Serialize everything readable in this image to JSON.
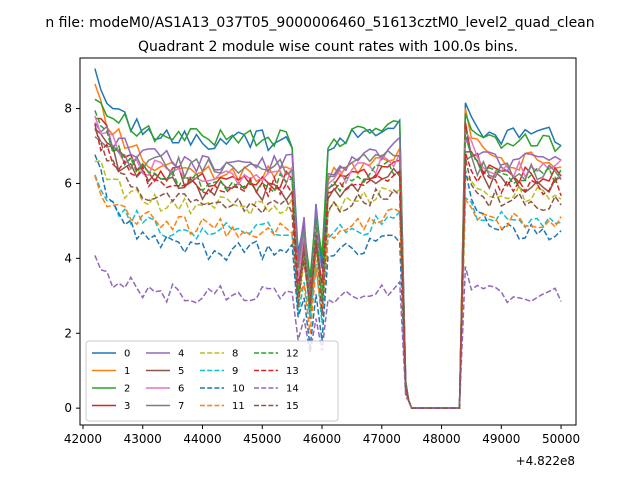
{
  "suptitle": "n file: modeM0/AS1A13_037T05_9000006460_51613cztM0_level2_quad_clean",
  "chart_data": {
    "type": "line",
    "title": "Quadrant 2 module wise count rates with 100.0s bins.",
    "xlabel": "",
    "ylabel": "",
    "x_offset_label": "+4.822e8",
    "xlim": [
      41950,
      50250
    ],
    "ylim": [
      -0.45,
      9.35
    ],
    "xticks": [
      42000,
      43000,
      44000,
      45000,
      46000,
      47000,
      48000,
      49000,
      50000
    ],
    "xtick_labels": [
      "42000",
      "43000",
      "44000",
      "45000",
      "46000",
      "47000",
      "48000",
      "49000",
      "50000"
    ],
    "yticks": [
      0,
      2,
      4,
      6,
      8
    ],
    "ytick_labels": [
      "0",
      "2",
      "4",
      "6",
      "8"
    ],
    "grid": false,
    "legend_placement": "lower-left",
    "legend_columns": 4,
    "segments": [
      {
        "start": 42200,
        "end": 45500,
        "gap_start": 45500
      },
      {
        "gap_end": 46100,
        "start": 46100,
        "end": 47300
      },
      {
        "drop_start": 47300,
        "zero_start": 47500,
        "zero_end": 48300
      },
      {
        "start": 48400,
        "end": 50000
      }
    ],
    "series": [
      {
        "name": "0",
        "color": "#1f77b4",
        "dash": "solid",
        "level": 7.15,
        "start": 8.85,
        "post": 7.25
      },
      {
        "name": "1",
        "color": "#ff7f0e",
        "dash": "solid",
        "level": 6.3,
        "start": 8.4,
        "post": 6.6
      },
      {
        "name": "2",
        "color": "#2ca02c",
        "dash": "solid",
        "level": 7.2,
        "start": 8.5,
        "post": 7.1
      },
      {
        "name": "3",
        "color": "#d62728",
        "dash": "solid",
        "level": 6.1,
        "start": 7.95,
        "post": 6.2
      },
      {
        "name": "4",
        "color": "#9467bd",
        "dash": "solid",
        "level": 6.5,
        "start": 7.8,
        "post": 6.55
      },
      {
        "name": "5",
        "color": "#8c564b",
        "dash": "solid",
        "level": 5.8,
        "start": 7.6,
        "post": 6.0
      },
      {
        "name": "6",
        "color": "#e377c2",
        "dash": "solid",
        "level": 6.2,
        "start": 7.9,
        "post": 6.4
      },
      {
        "name": "7",
        "color": "#7f7f7f",
        "dash": "solid",
        "level": 6.4,
        "start": 7.3,
        "post": 6.3
      },
      {
        "name": "8",
        "color": "#bcbd22",
        "dash": "dashed",
        "level": 5.4,
        "start": 6.6,
        "post": 5.7
      },
      {
        "name": "9",
        "color": "#17becf",
        "dash": "dashed",
        "level": 4.7,
        "start": 6.2,
        "post": 5.0
      },
      {
        "name": "10",
        "color": "#1f77b4",
        "dash": "dashed",
        "level": 4.2,
        "start": 6.7,
        "post": 4.7
      },
      {
        "name": "11",
        "color": "#ff7f0e",
        "dash": "dashed",
        "level": 4.8,
        "start": 6.1,
        "post": 5.0
      },
      {
        "name": "12",
        "color": "#2ca02c",
        "dash": "dashed",
        "level": 6.0,
        "start": 7.8,
        "post": 6.2
      },
      {
        "name": "13",
        "color": "#d62728",
        "dash": "dashed",
        "level": 5.9,
        "start": 7.4,
        "post": 5.9
      },
      {
        "name": "14",
        "color": "#9467bd",
        "dash": "dashed",
        "level": 3.0,
        "start": 3.85,
        "post": 3.0
      },
      {
        "name": "15",
        "color": "#8c564b",
        "dash": "dashed",
        "level": 5.4,
        "start": 7.2,
        "post": 5.5
      }
    ]
  }
}
